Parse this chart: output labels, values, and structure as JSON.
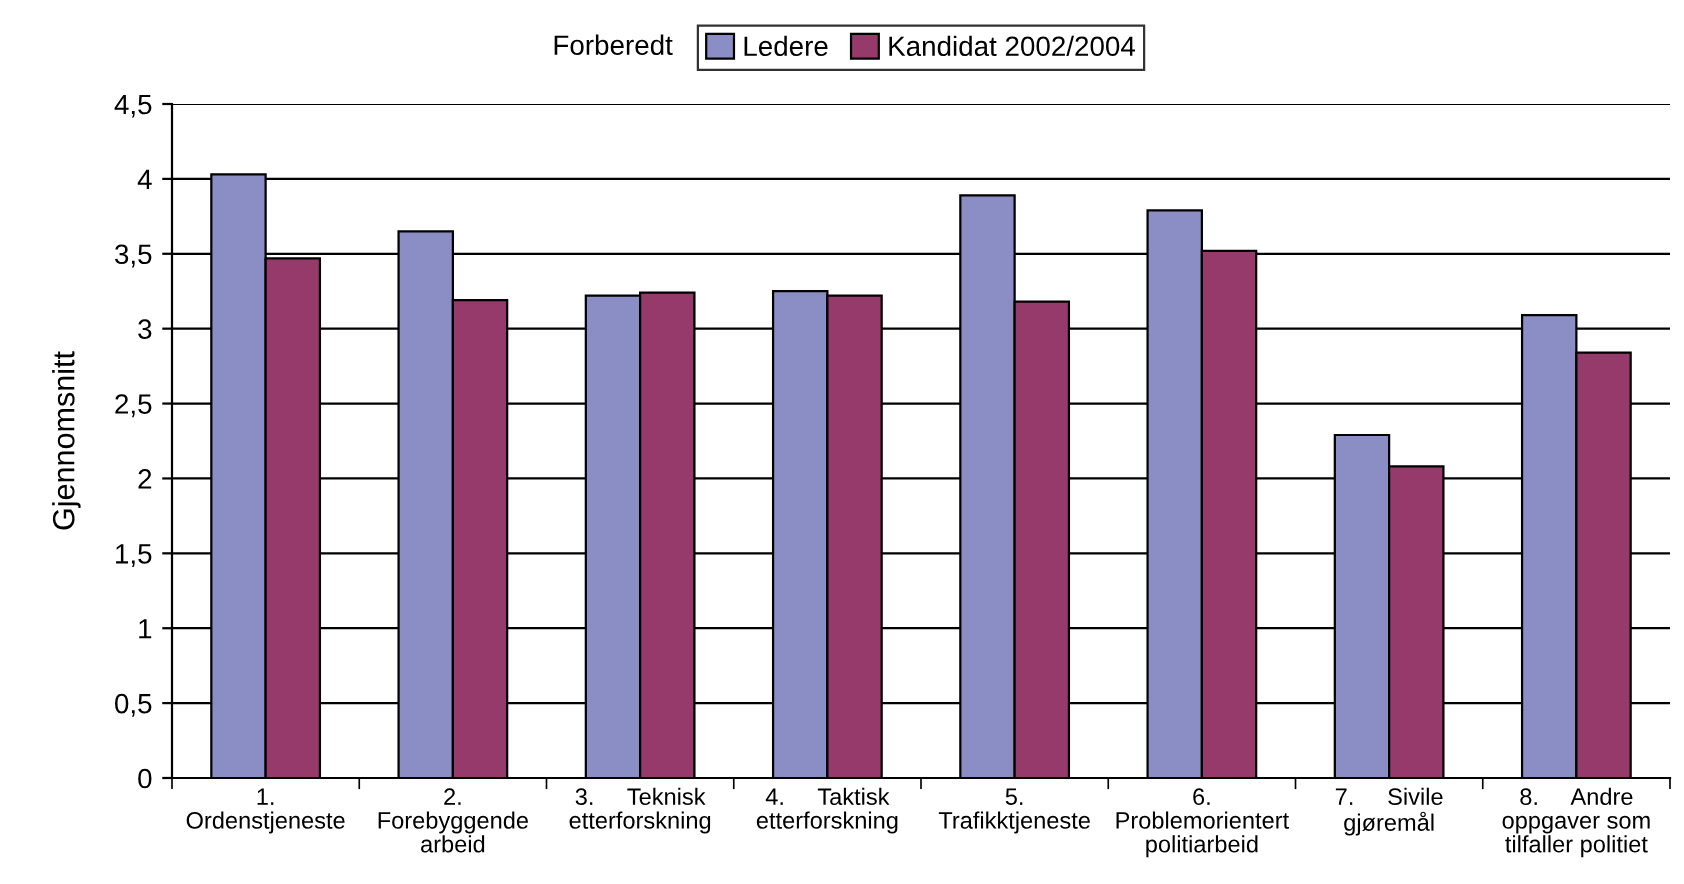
{
  "chart_data": {
    "type": "bar",
    "categories": [
      "1.\nOrdenstjeneste",
      "2.\nForebyggende\narbeid",
      "3.     Teknisk\netterforskning",
      "4.     Taktisk\netterforskning",
      "5.\nTrafikktjeneste",
      "6.\nProblemorientert\npolitiarbeid",
      "7.     Sivile\ngjøremål",
      "8.     Andre\noppgaver som\ntilfaller politiet"
    ],
    "series": [
      {
        "name": "Ledere",
        "color": "#8b8ec4",
        "values": [
          4.03,
          3.65,
          3.22,
          3.25,
          3.89,
          3.79,
          2.29,
          3.09
        ]
      },
      {
        "name": "Kandidat 2002/2004",
        "color": "#953a6b",
        "values": [
          3.47,
          3.19,
          3.24,
          3.22,
          3.18,
          3.52,
          2.08,
          2.84
        ]
      }
    ],
    "ylabel": "Gjennomsnitt",
    "legend_title": "Forberedt",
    "ylim": [
      0,
      4.5
    ],
    "yticks": [
      0,
      {
        "value": 0.5,
        "label": "0,5"
      },
      1,
      {
        "value": 1.5,
        "label": "1,5"
      },
      2,
      {
        "value": 2.5,
        "label": "2,5"
      },
      3,
      {
        "value": 3.5,
        "label": "3,5"
      },
      4,
      {
        "value": 4.5,
        "label": "4,5"
      }
    ],
    "grid": "y",
    "legend": "top"
  }
}
